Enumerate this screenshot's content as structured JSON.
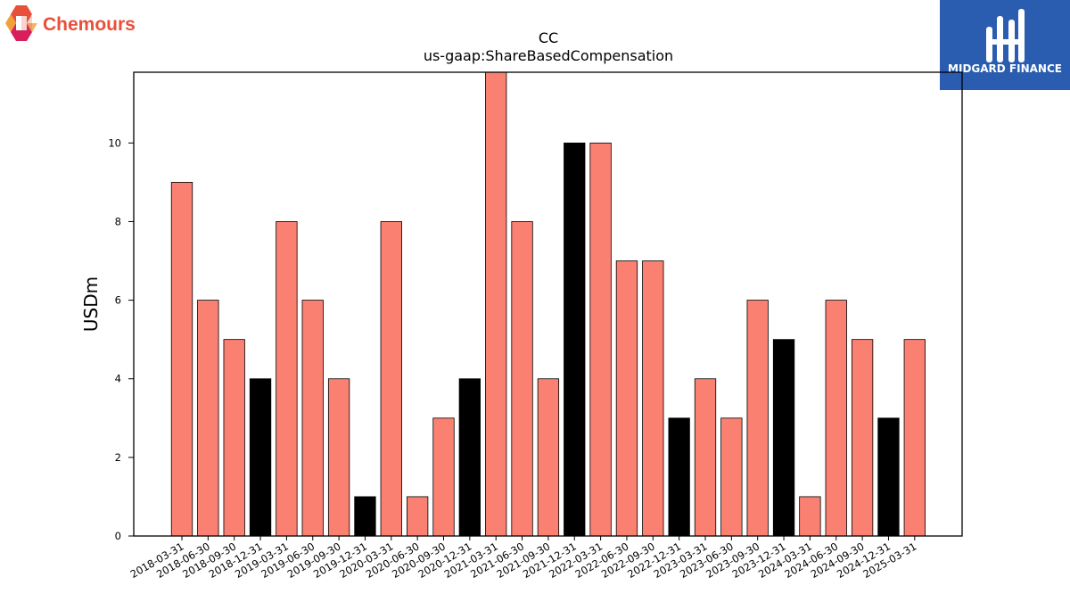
{
  "company_logo": {
    "text": "Chemours",
    "icon": "chemours-logo-icon"
  },
  "brand_logo": {
    "text": "MIDGARD FINANCE",
    "icon": "midgard-logo-icon",
    "color": "#2a5db0"
  },
  "chart_data": {
    "type": "bar",
    "title": "CC",
    "subtitle": "us-gaap:ShareBasedCompensation",
    "xlabel": "",
    "ylabel": "USDm",
    "ylim": [
      0,
      11.8
    ],
    "yticks": [
      0,
      2,
      4,
      6,
      8,
      10
    ],
    "grid": false,
    "colors": {
      "default": "#fa8072",
      "highlight": "#000000",
      "edge": "#000000"
    },
    "categories": [
      "2018-03-31",
      "2018-06-30",
      "2018-09-30",
      "2018-12-31",
      "2019-03-31",
      "2019-06-30",
      "2019-09-30",
      "2019-12-31",
      "2020-03-31",
      "2020-06-30",
      "2020-09-30",
      "2020-12-31",
      "2021-03-31",
      "2021-06-30",
      "2021-09-30",
      "2021-12-31",
      "2022-03-31",
      "2022-06-30",
      "2022-09-30",
      "2022-12-31",
      "2023-03-31",
      "2023-06-30",
      "2023-09-30",
      "2023-12-31",
      "2024-03-31",
      "2024-06-30",
      "2024-09-30",
      "2024-12-31",
      "2025-03-31"
    ],
    "values": [
      9,
      6,
      5,
      4,
      8,
      6,
      4,
      1,
      8,
      1,
      3,
      4,
      12,
      8,
      4,
      10,
      10,
      7,
      7,
      3,
      4,
      3,
      6,
      5,
      1,
      6,
      5,
      3,
      5
    ],
    "highlight": [
      false,
      false,
      false,
      true,
      false,
      false,
      false,
      true,
      false,
      false,
      false,
      true,
      false,
      false,
      false,
      true,
      false,
      false,
      false,
      true,
      false,
      false,
      false,
      true,
      false,
      false,
      false,
      true,
      false
    ]
  }
}
